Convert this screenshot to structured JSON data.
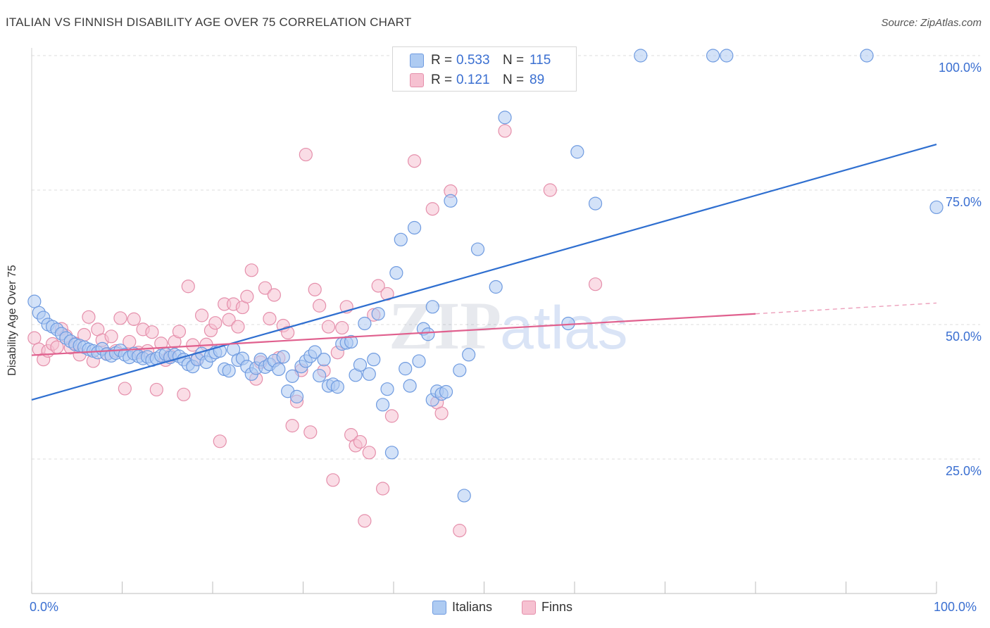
{
  "header": {
    "title": "ITALIAN VS FINNISH DISABILITY AGE OVER 75 CORRELATION CHART",
    "source": "Source: ZipAtlas.com"
  },
  "watermark": {
    "text1": "ZIP",
    "text2": "atlas"
  },
  "legend": {
    "rows": [
      {
        "r_label": "R =",
        "r_value": "0.533",
        "n_label": "N =",
        "n_value": "115"
      },
      {
        "r_label": "R =",
        "r_value": "0.121",
        "n_label": "N =",
        "n_value": "89"
      }
    ]
  },
  "bottom_legend": {
    "items": [
      "Italians",
      "Finns"
    ]
  },
  "colors": {
    "blue_fill": "#aecbf2",
    "blue_stroke": "#6f9be0",
    "blue_line": "#2f6fd0",
    "pink_fill": "#f6c1d1",
    "pink_stroke": "#e58fab",
    "pink_line": "#e0608e",
    "tick_text": "#3a6fd1",
    "grid": "#dcdcdc"
  },
  "chart_data": {
    "type": "scatter",
    "title": "ITALIAN VS FINNISH DISABILITY AGE OVER 75 CORRELATION CHART",
    "xlabel": "",
    "ylabel": "Disability Age Over 75",
    "xlim": [
      0,
      100
    ],
    "ylim": [
      0,
      105
    ],
    "x_tick_labels": [
      "0.0%",
      "100.0%"
    ],
    "y_ticks": [
      25,
      50,
      75,
      100
    ],
    "y_tick_labels": [
      "25.0%",
      "50.0%",
      "75.0%",
      "100.0%"
    ],
    "grid": true,
    "legend_position": "top-center",
    "series": [
      {
        "name": "Italians",
        "r": 0.533,
        "n": 115,
        "trend": {
          "x": [
            0,
            100
          ],
          "y": [
            36,
            83.5
          ]
        },
        "points": [
          [
            0.3,
            54.3
          ],
          [
            0.8,
            52.2
          ],
          [
            1.3,
            51.3
          ],
          [
            1.8,
            50
          ],
          [
            2.3,
            49.6
          ],
          [
            2.8,
            49.1
          ],
          [
            3.3,
            48.3
          ],
          [
            3.8,
            47.5
          ],
          [
            4.3,
            46.9
          ],
          [
            4.8,
            46.3
          ],
          [
            5.3,
            46.1
          ],
          [
            5.8,
            45.8
          ],
          [
            6.3,
            45.4
          ],
          [
            6.8,
            45.1
          ],
          [
            7.3,
            44.8
          ],
          [
            7.8,
            45.5
          ],
          [
            8.3,
            44.5
          ],
          [
            8.8,
            44.2
          ],
          [
            9.3,
            44.7
          ],
          [
            9.8,
            45.2
          ],
          [
            10.3,
            44.4
          ],
          [
            10.8,
            43.9
          ],
          [
            11.3,
            44.6
          ],
          [
            11.8,
            44.1
          ],
          [
            12.3,
            43.7
          ],
          [
            12.8,
            44
          ],
          [
            13.3,
            43.4
          ],
          [
            13.8,
            43.7
          ],
          [
            14.3,
            44.2
          ],
          [
            14.8,
            44.5
          ],
          [
            15.3,
            43.9
          ],
          [
            15.8,
            44.4
          ],
          [
            16.3,
            44.1
          ],
          [
            16.8,
            43.5
          ],
          [
            17.3,
            42.6
          ],
          [
            17.8,
            42.2
          ],
          [
            18.3,
            43.5
          ],
          [
            18.8,
            44.6
          ],
          [
            19.3,
            43
          ],
          [
            19.8,
            44.2
          ],
          [
            20.3,
            44.8
          ],
          [
            20.8,
            45.1
          ],
          [
            21.3,
            41.7
          ],
          [
            21.8,
            41.4
          ],
          [
            22.3,
            45.4
          ],
          [
            22.8,
            43.4
          ],
          [
            23.3,
            43.7
          ],
          [
            23.8,
            42.2
          ],
          [
            24.3,
            40.8
          ],
          [
            24.8,
            41.9
          ],
          [
            25.3,
            43.5
          ],
          [
            25.8,
            42.1
          ],
          [
            26.3,
            42.6
          ],
          [
            26.8,
            43.3
          ],
          [
            27.3,
            41.7
          ],
          [
            27.8,
            44
          ],
          [
            28.3,
            37.6
          ],
          [
            28.8,
            40.4
          ],
          [
            29.3,
            36.6
          ],
          [
            29.8,
            42.2
          ],
          [
            30.3,
            43.2
          ],
          [
            30.8,
            44.1
          ],
          [
            31.3,
            44.9
          ],
          [
            31.8,
            40.5
          ],
          [
            32.3,
            43.5
          ],
          [
            32.8,
            38.6
          ],
          [
            33.3,
            38.9
          ],
          [
            33.8,
            38.4
          ],
          [
            34.3,
            46.4
          ],
          [
            34.8,
            46.6
          ],
          [
            35.3,
            46.8
          ],
          [
            35.8,
            40.6
          ],
          [
            36.3,
            42.5
          ],
          [
            36.8,
            50.2
          ],
          [
            37.3,
            40.8
          ],
          [
            37.8,
            43.5
          ],
          [
            38.3,
            52
          ],
          [
            38.8,
            35.1
          ],
          [
            39.3,
            38
          ],
          [
            39.8,
            26.2
          ],
          [
            40.3,
            59.6
          ],
          [
            40.8,
            65.8
          ],
          [
            41.3,
            41.8
          ],
          [
            41.8,
            38.6
          ],
          [
            42.3,
            68
          ],
          [
            42.8,
            43.2
          ],
          [
            43.3,
            49.2
          ],
          [
            43.8,
            48.2
          ],
          [
            44.3,
            36
          ],
          [
            44.8,
            37.6
          ],
          [
            45.3,
            37.1
          ],
          [
            45.8,
            37.5
          ],
          [
            46.3,
            73
          ],
          [
            47.3,
            41.5
          ],
          [
            47.8,
            18.2
          ],
          [
            48.3,
            44.4
          ],
          [
            49.3,
            64
          ],
          [
            51.3,
            57
          ],
          [
            52.3,
            88.5
          ],
          [
            59.3,
            50.2
          ],
          [
            62.3,
            72.5
          ],
          [
            100,
            71.8
          ],
          [
            42.3,
            100
          ],
          [
            43.8,
            100
          ],
          [
            45.3,
            100
          ],
          [
            48.3,
            100
          ],
          [
            50.3,
            100
          ],
          [
            52.3,
            100
          ],
          [
            67.3,
            100
          ],
          [
            75.3,
            100
          ],
          [
            76.8,
            100
          ],
          [
            92.3,
            100
          ],
          [
            47.3,
            100
          ],
          [
            60.3,
            82.1
          ],
          [
            44.3,
            53.3
          ]
        ]
      },
      {
        "name": "Finns",
        "r": 0.121,
        "n": 89,
        "trend": {
          "x": [
            0,
            80
          ],
          "y": [
            44.3,
            52
          ]
        },
        "trend_dashed": {
          "x": [
            80,
            100
          ],
          "y": [
            52,
            54
          ]
        },
        "points": [
          [
            0.3,
            47.5
          ],
          [
            0.8,
            45.4
          ],
          [
            1.3,
            43.5
          ],
          [
            1.8,
            45.1
          ],
          [
            2.3,
            46.4
          ],
          [
            2.8,
            45.8
          ],
          [
            3.3,
            49.2
          ],
          [
            3.8,
            47.9
          ],
          [
            4.3,
            45.7
          ],
          [
            4.8,
            46.5
          ],
          [
            5.3,
            44.4
          ],
          [
            5.8,
            48.1
          ],
          [
            6.3,
            51.4
          ],
          [
            6.8,
            43.2
          ],
          [
            7.3,
            49.1
          ],
          [
            7.8,
            47.1
          ],
          [
            8.3,
            44.6
          ],
          [
            8.8,
            47.8
          ],
          [
            9.3,
            45.1
          ],
          [
            9.8,
            51.2
          ],
          [
            10.3,
            38.1
          ],
          [
            10.8,
            46.8
          ],
          [
            11.3,
            51
          ],
          [
            11.8,
            44.8
          ],
          [
            12.3,
            49.1
          ],
          [
            12.8,
            45.1
          ],
          [
            13.3,
            48.6
          ],
          [
            13.8,
            37.9
          ],
          [
            14.3,
            46.5
          ],
          [
            14.8,
            43.4
          ],
          [
            15.3,
            44.2
          ],
          [
            15.8,
            46.8
          ],
          [
            16.3,
            48.7
          ],
          [
            16.8,
            37
          ],
          [
            17.3,
            57.1
          ],
          [
            17.8,
            46.2
          ],
          [
            18.3,
            43.7
          ],
          [
            18.8,
            51.7
          ],
          [
            19.3,
            46.3
          ],
          [
            19.8,
            48.9
          ],
          [
            20.3,
            50.3
          ],
          [
            20.8,
            28.3
          ],
          [
            21.3,
            53.8
          ],
          [
            21.8,
            50.9
          ],
          [
            22.3,
            53.8
          ],
          [
            22.8,
            49.6
          ],
          [
            23.3,
            53.2
          ],
          [
            23.8,
            55.2
          ],
          [
            24.3,
            60.1
          ],
          [
            24.8,
            39.9
          ],
          [
            25.3,
            43
          ],
          [
            25.8,
            56.8
          ],
          [
            26.3,
            51.1
          ],
          [
            26.8,
            55.5
          ],
          [
            27.3,
            43.8
          ],
          [
            27.8,
            49.8
          ],
          [
            28.3,
            48.5
          ],
          [
            28.8,
            31.2
          ],
          [
            29.3,
            35.7
          ],
          [
            29.8,
            41.5
          ],
          [
            30.3,
            81.6
          ],
          [
            30.8,
            30
          ],
          [
            31.3,
            56.5
          ],
          [
            31.8,
            53.5
          ],
          [
            32.3,
            41.4
          ],
          [
            32.8,
            49.6
          ],
          [
            33.3,
            21.1
          ],
          [
            33.8,
            44.8
          ],
          [
            34.3,
            49.4
          ],
          [
            34.8,
            53.3
          ],
          [
            35.3,
            29.5
          ],
          [
            35.8,
            27.5
          ],
          [
            36.3,
            28.2
          ],
          [
            36.8,
            13.5
          ],
          [
            37.3,
            26.2
          ],
          [
            37.8,
            51.8
          ],
          [
            38.3,
            57.2
          ],
          [
            38.8,
            19.5
          ],
          [
            39.3,
            55.7
          ],
          [
            39.8,
            33
          ],
          [
            42.3,
            80.4
          ],
          [
            44.3,
            71.5
          ],
          [
            44.8,
            35.5
          ],
          [
            45.3,
            33.5
          ],
          [
            46.3,
            74.8
          ],
          [
            47.3,
            11.7
          ],
          [
            52.3,
            86
          ],
          [
            57.3,
            75
          ],
          [
            62.3,
            57.5
          ]
        ]
      }
    ]
  }
}
